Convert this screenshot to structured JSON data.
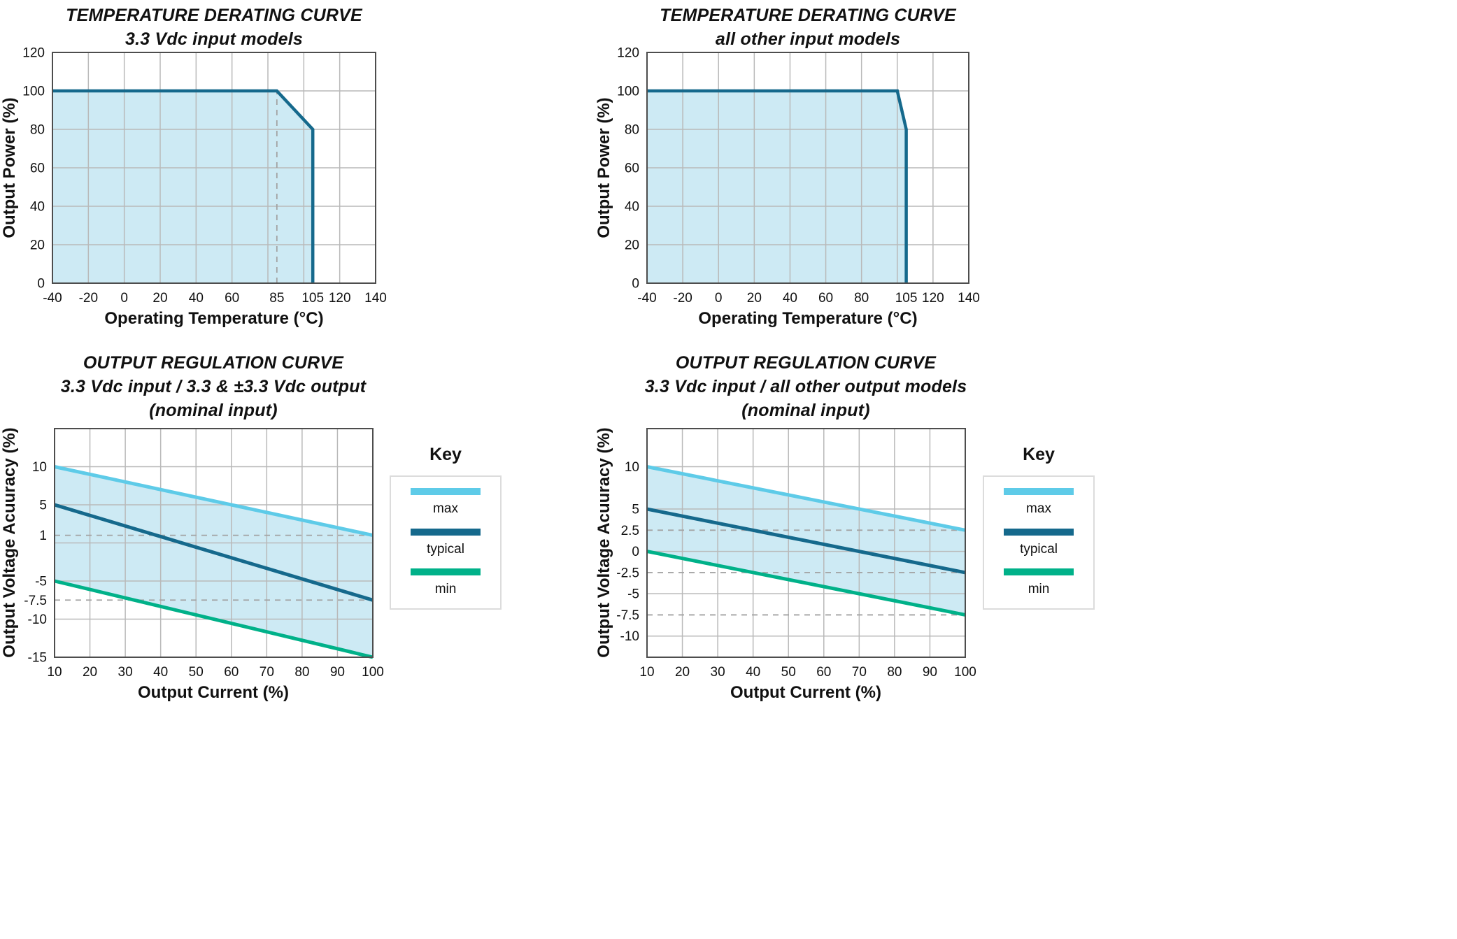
{
  "colors": {
    "fill": "#cdeaf4",
    "max": "#5ecbe8",
    "typical": "#15698c",
    "min": "#00b189",
    "grid": "#b9b9b9",
    "dashed": "#a3a3a3",
    "plot_border": "#4d4d4d",
    "text": "#111111"
  },
  "legend": {
    "title": "Key",
    "items": [
      {
        "id": "max",
        "label": "max"
      },
      {
        "id": "typical",
        "label": "typical"
      },
      {
        "id": "min",
        "label": "min"
      }
    ]
  },
  "chart_data": [
    {
      "id": "temperature-derating-3v3-input",
      "type": "area",
      "title": "TEMPERATURE DERATING CURVE",
      "subtitle": "3.3 Vdc input models",
      "xlabel": "Operating Temperature (°C)",
      "ylabel": "Output Power (%)",
      "xlim": [
        -40,
        140
      ],
      "ylim": [
        0,
        120
      ],
      "x_gridlines": [
        -40,
        -20,
        0,
        20,
        40,
        60,
        80,
        100,
        120,
        140
      ],
      "y_gridlines": [
        0,
        20,
        40,
        60,
        80,
        100,
        120
      ],
      "xticks": [
        {
          "v": -40,
          "label": "-40"
        },
        {
          "v": -20,
          "label": "-20"
        },
        {
          "v": 0,
          "label": "0"
        },
        {
          "v": 20,
          "label": "20"
        },
        {
          "v": 40,
          "label": "40"
        },
        {
          "v": 60,
          "label": "60"
        },
        {
          "v": 85,
          "label": "85"
        },
        {
          "v": 105,
          "label": "105"
        },
        {
          "v": 120,
          "label": "120"
        },
        {
          "v": 140,
          "label": "140"
        }
      ],
      "yticks": [
        {
          "v": 0,
          "label": "0"
        },
        {
          "v": 20,
          "label": "20"
        },
        {
          "v": 40,
          "label": "40"
        },
        {
          "v": 60,
          "label": "60"
        },
        {
          "v": 80,
          "label": "80"
        },
        {
          "v": 100,
          "label": "100"
        },
        {
          "v": 120,
          "label": "120"
        }
      ],
      "curve": [
        [
          -40,
          100
        ],
        [
          85,
          100
        ],
        [
          105,
          80
        ],
        [
          105,
          0
        ]
      ],
      "dashed_vlines": [
        {
          "x": 85,
          "y0": 0,
          "y1": 100
        }
      ]
    },
    {
      "id": "temperature-derating-other-input",
      "type": "area",
      "title": "TEMPERATURE DERATING CURVE",
      "subtitle": "all other input models",
      "xlabel": "Operating Temperature (°C)",
      "ylabel": "Output Power (%)",
      "xlim": [
        -40,
        140
      ],
      "ylim": [
        0,
        120
      ],
      "x_gridlines": [
        -40,
        -20,
        0,
        20,
        40,
        60,
        80,
        100,
        120,
        140
      ],
      "y_gridlines": [
        0,
        20,
        40,
        60,
        80,
        100,
        120
      ],
      "xticks": [
        {
          "v": -40,
          "label": "-40"
        },
        {
          "v": -20,
          "label": "-20"
        },
        {
          "v": 0,
          "label": "0"
        },
        {
          "v": 20,
          "label": "20"
        },
        {
          "v": 40,
          "label": "40"
        },
        {
          "v": 60,
          "label": "60"
        },
        {
          "v": 80,
          "label": "80"
        },
        {
          "v": 105,
          "label": "105"
        },
        {
          "v": 120,
          "label": "120"
        },
        {
          "v": 140,
          "label": "140"
        }
      ],
      "yticks": [
        {
          "v": 0,
          "label": "0"
        },
        {
          "v": 20,
          "label": "20"
        },
        {
          "v": 40,
          "label": "40"
        },
        {
          "v": 60,
          "label": "60"
        },
        {
          "v": 80,
          "label": "80"
        },
        {
          "v": 100,
          "label": "100"
        },
        {
          "v": 120,
          "label": "120"
        }
      ],
      "curve": [
        [
          -40,
          100
        ],
        [
          100,
          100
        ],
        [
          105,
          80
        ],
        [
          105,
          0
        ]
      ],
      "dashed_vlines": []
    },
    {
      "id": "output-regulation-3v3-output",
      "type": "line",
      "title": "OUTPUT REGULATION CURVE",
      "subtitle": "3.3 Vdc input / 3.3 & ±3.3 Vdc output",
      "subtitle2": "(nominal input)",
      "xlabel": "Output Current (%)",
      "ylabel": "Output Voltage Acuuracy (%)",
      "xlim": [
        10,
        100
      ],
      "ylim": [
        -15,
        15
      ],
      "x_gridlines": [
        10,
        20,
        30,
        40,
        50,
        60,
        70,
        80,
        90,
        100
      ],
      "y_gridlines": [
        -10,
        -5,
        0,
        5,
        10
      ],
      "xticks": [
        {
          "v": 10,
          "label": "10"
        },
        {
          "v": 20,
          "label": "20"
        },
        {
          "v": 30,
          "label": "30"
        },
        {
          "v": 40,
          "label": "40"
        },
        {
          "v": 50,
          "label": "50"
        },
        {
          "v": 60,
          "label": "60"
        },
        {
          "v": 70,
          "label": "70"
        },
        {
          "v": 80,
          "label": "80"
        },
        {
          "v": 90,
          "label": "90"
        },
        {
          "v": 100,
          "label": "100"
        }
      ],
      "yticks": [
        {
          "v": 10,
          "label": "10"
        },
        {
          "v": 5,
          "label": "5"
        },
        {
          "v": 1,
          "label": "1"
        },
        {
          "v": -5,
          "label": "-5"
        },
        {
          "v": -7.5,
          "label": "-7.5"
        },
        {
          "v": -10,
          "label": "-10"
        },
        {
          "v": -15,
          "label": "-15"
        }
      ],
      "dashed_hlines": [
        1,
        -7.5
      ],
      "series": [
        {
          "name": "max",
          "color_key": "max",
          "points": [
            [
              10,
              10
            ],
            [
              100,
              1
            ]
          ]
        },
        {
          "name": "typical",
          "color_key": "typical",
          "points": [
            [
              10,
              5
            ],
            [
              100,
              -7.5
            ]
          ]
        },
        {
          "name": "min",
          "color_key": "min",
          "points": [
            [
              10,
              -5
            ],
            [
              100,
              -15
            ]
          ]
        }
      ],
      "band": {
        "upper": 0,
        "lower": 2
      }
    },
    {
      "id": "output-regulation-other-output",
      "type": "line",
      "title": "OUTPUT REGULATION CURVE",
      "subtitle": "3.3 Vdc input / all other output models",
      "subtitle2": "(nominal input)",
      "xlabel": "Output Current (%)",
      "ylabel": "Output Voltage Acuuracy (%)",
      "xlim": [
        10,
        100
      ],
      "ylim": [
        -12.5,
        14.5
      ],
      "x_gridlines": [
        10,
        20,
        30,
        40,
        50,
        60,
        70,
        80,
        90,
        100
      ],
      "y_gridlines": [
        -10,
        -5,
        0,
        5,
        10
      ],
      "xticks": [
        {
          "v": 10,
          "label": "10"
        },
        {
          "v": 20,
          "label": "20"
        },
        {
          "v": 30,
          "label": "30"
        },
        {
          "v": 40,
          "label": "40"
        },
        {
          "v": 50,
          "label": "50"
        },
        {
          "v": 60,
          "label": "60"
        },
        {
          "v": 70,
          "label": "70"
        },
        {
          "v": 80,
          "label": "80"
        },
        {
          "v": 90,
          "label": "90"
        },
        {
          "v": 100,
          "label": "100"
        }
      ],
      "yticks": [
        {
          "v": 10,
          "label": "10"
        },
        {
          "v": 5,
          "label": "5"
        },
        {
          "v": 2.5,
          "label": "2.5"
        },
        {
          "v": 0,
          "label": "0"
        },
        {
          "v": -2.5,
          "label": "-2.5"
        },
        {
          "v": -5,
          "label": "-5"
        },
        {
          "v": -7.5,
          "label": "-7.5"
        },
        {
          "v": -10,
          "label": "-10"
        }
      ],
      "dashed_hlines": [
        2.5,
        -2.5,
        -7.5
      ],
      "series": [
        {
          "name": "max",
          "color_key": "max",
          "points": [
            [
              10,
              10
            ],
            [
              100,
              2.5
            ]
          ]
        },
        {
          "name": "typical",
          "color_key": "typical",
          "points": [
            [
              10,
              5
            ],
            [
              100,
              -2.5
            ]
          ]
        },
        {
          "name": "min",
          "color_key": "min",
          "points": [
            [
              10,
              0
            ],
            [
              100,
              -7.5
            ]
          ]
        }
      ],
      "band": {
        "upper": 0,
        "lower": 2
      }
    }
  ]
}
